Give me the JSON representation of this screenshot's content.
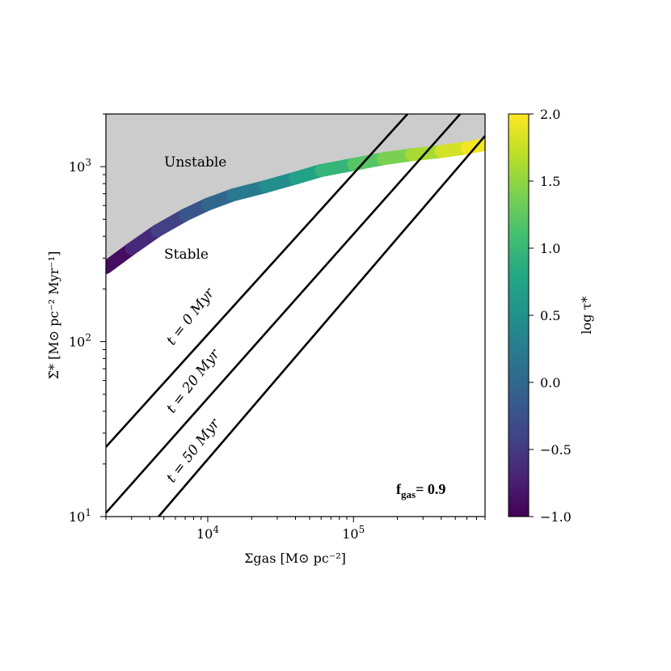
{
  "chart_data": {
    "type": "line",
    "x_scale": "log",
    "y_scale": "log",
    "xlabel": "Σgas [M⊙ pc⁻²]",
    "ylabel": "Σ̇* [M⊙ pc⁻² Myr⁻¹]",
    "xlim": [
      2000,
      800000
    ],
    "ylim": [
      10,
      2000
    ],
    "x_ticks": [
      {
        "value": 10000,
        "base": "10",
        "exp": "4"
      },
      {
        "value": 100000,
        "base": "10",
        "exp": "5"
      }
    ],
    "y_ticks": [
      {
        "value": 10,
        "base": "10",
        "exp": "1"
      },
      {
        "value": 100,
        "base": "10",
        "exp": "2"
      },
      {
        "value": 1000,
        "base": "10",
        "exp": "3"
      }
    ],
    "regions": {
      "unstable_label": "Unstable",
      "stable_label": "Stable",
      "unstable_color": "#cccccc"
    },
    "boundary_curve": {
      "color_quantity": "log τ*",
      "points": [
        {
          "x": 2000,
          "y": 265,
          "c": -1.0
        },
        {
          "x": 3000,
          "y": 340,
          "c": -0.8
        },
        {
          "x": 4500,
          "y": 430,
          "c": -0.55
        },
        {
          "x": 7000,
          "y": 530,
          "c": -0.3
        },
        {
          "x": 10000,
          "y": 610,
          "c": -0.1
        },
        {
          "x": 15000,
          "y": 690,
          "c": 0.1
        },
        {
          "x": 25000,
          "y": 770,
          "c": 0.35
        },
        {
          "x": 40000,
          "y": 860,
          "c": 0.6
        },
        {
          "x": 60000,
          "y": 950,
          "c": 0.85
        },
        {
          "x": 100000,
          "y": 1030,
          "c": 1.1
        },
        {
          "x": 160000,
          "y": 1110,
          "c": 1.3
        },
        {
          "x": 250000,
          "y": 1170,
          "c": 1.5
        },
        {
          "x": 400000,
          "y": 1220,
          "c": 1.7
        },
        {
          "x": 600000,
          "y": 1280,
          "c": 1.9
        },
        {
          "x": 800000,
          "y": 1340,
          "c": 2.0
        }
      ]
    },
    "series": [
      {
        "name": "t = 0 Myr",
        "label": "t = 0 Myr",
        "x": [
          2000,
          235000
        ],
        "y": [
          25,
          2000
        ]
      },
      {
        "name": "t = 20 Myr",
        "label": "t = 20 Myr",
        "x": [
          2000,
          540000
        ],
        "y": [
          10.5,
          2000
        ]
      },
      {
        "name": "t = 50 Myr",
        "label": "t = 50 Myr",
        "x": [
          4600,
          800000
        ],
        "y": [
          10,
          1500
        ]
      }
    ],
    "annotation": {
      "text": "f",
      "subscript": "gas",
      "suffix": "= 0.9"
    },
    "colorbar": {
      "label": "log τ*",
      "range": [
        -1.0,
        2.0
      ],
      "ticks": [
        "2.0",
        "1.5",
        "1.0",
        "0.5",
        "0.0",
        "−0.5",
        "−1.0"
      ],
      "tick_values": [
        2.0,
        1.5,
        1.0,
        0.5,
        0.0,
        -0.5,
        -1.0
      ],
      "colormap": "viridis"
    }
  }
}
